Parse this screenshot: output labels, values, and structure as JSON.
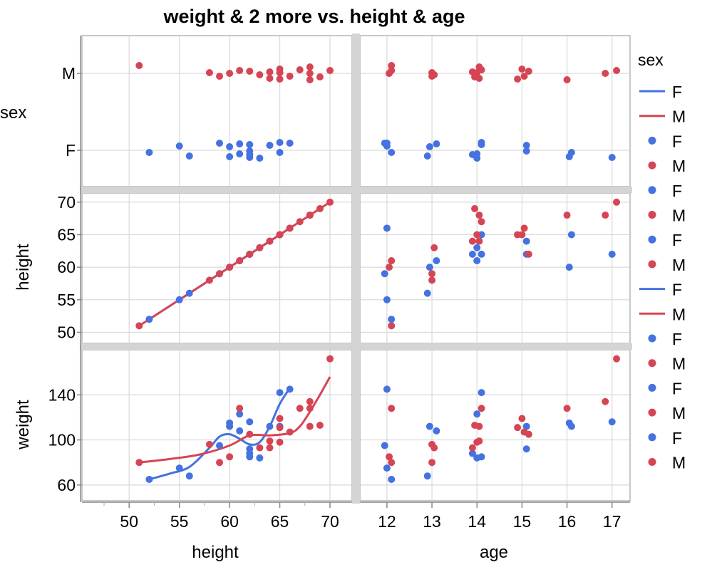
{
  "chart_data": {
    "type": "scatter",
    "title": "weight & 2 more vs. height & age",
    "x_variables": [
      "height",
      "age"
    ],
    "y_variables": [
      "sex",
      "height",
      "weight"
    ],
    "xlabels": [
      "height",
      "age"
    ],
    "ylabels": [
      "sex",
      "height",
      "weight"
    ],
    "axes": {
      "height_x": {
        "range": [
          45.3,
          72.2
        ],
        "ticks": [
          50,
          55,
          60,
          65,
          70
        ]
      },
      "age_x": {
        "range": [
          11.4,
          17.4
        ],
        "ticks": [
          12,
          13,
          14,
          15,
          16,
          17
        ]
      },
      "sex_y": {
        "categories": [
          "F",
          "M"
        ],
        "ticks": [
          "M",
          "F"
        ]
      },
      "height_y": {
        "range": [
          48.3,
          71.4
        ],
        "ticks": [
          50,
          55,
          60,
          65,
          70
        ]
      },
      "weight_y": {
        "range": [
          46,
          180
        ],
        "ticks": [
          60,
          100,
          140
        ]
      }
    },
    "colors": {
      "F": "#4472e0",
      "M": "#d64554"
    },
    "legend": {
      "title": "sex",
      "position": "right",
      "entries": [
        {
          "label": "F",
          "kind": "line",
          "color": "#4472e0"
        },
        {
          "label": "M",
          "kind": "line",
          "color": "#d64554"
        },
        {
          "label": "F",
          "kind": "dot",
          "color": "#4472e0"
        },
        {
          "label": "M",
          "kind": "dot",
          "color": "#d64554"
        },
        {
          "label": "F",
          "kind": "dot",
          "color": "#4472e0"
        },
        {
          "label": "M",
          "kind": "dot",
          "color": "#d64554"
        },
        {
          "label": "F",
          "kind": "dot",
          "color": "#4472e0"
        },
        {
          "label": "M",
          "kind": "dot",
          "color": "#d64554"
        },
        {
          "label": "F",
          "kind": "line",
          "color": "#4472e0"
        },
        {
          "label": "M",
          "kind": "line",
          "color": "#d64554"
        },
        {
          "label": "F",
          "kind": "dot",
          "color": "#4472e0"
        },
        {
          "label": "M",
          "kind": "dot",
          "color": "#d64554"
        },
        {
          "label": "F",
          "kind": "dot",
          "color": "#4472e0"
        },
        {
          "label": "M",
          "kind": "dot",
          "color": "#d64554"
        },
        {
          "label": "F",
          "kind": "dot",
          "color": "#4472e0"
        },
        {
          "label": "M",
          "kind": "dot",
          "color": "#d64554"
        }
      ]
    },
    "grid": true,
    "data": [
      {
        "sex": "M",
        "height": 51,
        "age": 12.1,
        "weight": 80
      },
      {
        "sex": "F",
        "height": 52,
        "age": 12.1,
        "weight": 65
      },
      {
        "sex": "F",
        "height": 55,
        "age": 12.0,
        "weight": 75
      },
      {
        "sex": "F",
        "height": 56,
        "age": 12.9,
        "weight": 68
      },
      {
        "sex": "M",
        "height": 58,
        "age": 13.0,
        "weight": 96
      },
      {
        "sex": "F",
        "height": 59,
        "age": 11.95,
        "weight": 95
      },
      {
        "sex": "M",
        "height": 59,
        "age": 13.0,
        "weight": 80
      },
      {
        "sex": "F",
        "height": 60,
        "age": 12.95,
        "weight": 112
      },
      {
        "sex": "F",
        "height": 60,
        "age": 16.05,
        "weight": 115
      },
      {
        "sex": "M",
        "height": 60,
        "age": 12.05,
        "weight": 85
      },
      {
        "sex": "F",
        "height": 61,
        "age": 13.1,
        "weight": 108
      },
      {
        "sex": "F",
        "height": 61,
        "age": 14.0,
        "weight": 123
      },
      {
        "sex": "M",
        "height": 61,
        "age": 12.1,
        "weight": 128
      },
      {
        "sex": "F",
        "height": 62,
        "age": 17.0,
        "weight": 116
      },
      {
        "sex": "F",
        "height": 62,
        "age": 15.1,
        "weight": 92
      },
      {
        "sex": "F",
        "height": 62,
        "age": 14.1,
        "weight": 85
      },
      {
        "sex": "F",
        "height": 62,
        "age": 13.9,
        "weight": 88
      },
      {
        "sex": "M",
        "height": 62,
        "age": 15.15,
        "weight": 105
      },
      {
        "sex": "F",
        "height": 63,
        "age": 14.0,
        "weight": 84
      },
      {
        "sex": "M",
        "height": 63,
        "age": 13.05,
        "weight": 93
      },
      {
        "sex": "F",
        "height": 64,
        "age": 15.1,
        "weight": 112
      },
      {
        "sex": "M",
        "height": 64,
        "age": 14.05,
        "weight": 99
      },
      {
        "sex": "M",
        "height": 64,
        "age": 13.9,
        "weight": 93
      },
      {
        "sex": "F",
        "height": 65,
        "age": 14.1,
        "weight": 142
      },
      {
        "sex": "F",
        "height": 65,
        "age": 16.1,
        "weight": 112
      },
      {
        "sex": "M",
        "height": 65,
        "age": 15.0,
        "weight": 119
      },
      {
        "sex": "M",
        "height": 65,
        "age": 14.9,
        "weight": 111
      },
      {
        "sex": "M",
        "height": 65,
        "age": 14.0,
        "weight": 98
      },
      {
        "sex": "F",
        "height": 66,
        "age": 12.0,
        "weight": 145
      },
      {
        "sex": "M",
        "height": 66,
        "age": 15.05,
        "weight": 107
      },
      {
        "sex": "M",
        "height": 67,
        "age": 14.1,
        "weight": 128
      },
      {
        "sex": "M",
        "height": 68,
        "age": 16.0,
        "weight": 128
      },
      {
        "sex": "M",
        "height": 68,
        "age": 16.85,
        "weight": 134
      },
      {
        "sex": "M",
        "height": 68,
        "age": 14.05,
        "weight": 112
      },
      {
        "sex": "M",
        "height": 69,
        "age": 13.95,
        "weight": 113
      },
      {
        "sex": "M",
        "height": 70,
        "age": 17.1,
        "weight": 172
      }
    ],
    "smoothers": {
      "weight_vs_height": {
        "F": {
          "x": [
            52,
            54,
            56,
            58,
            59,
            60,
            61,
            62,
            63,
            64,
            65,
            66
          ],
          "y": [
            65,
            70,
            76,
            93,
            103,
            105,
            101,
            96,
            98,
            112,
            132,
            146
          ]
        },
        "M": {
          "x": [
            51,
            54,
            57,
            60,
            62,
            64,
            66,
            67,
            68,
            69,
            70
          ],
          "y": [
            80,
            83,
            87,
            95,
            104,
            104,
            106,
            112,
            125,
            140,
            156
          ]
        }
      },
      "height_vs_height": {
        "F": {
          "x": [
            52,
            66
          ],
          "y": [
            52,
            66
          ]
        },
        "M": {
          "x": [
            51,
            70
          ],
          "y": [
            51,
            70
          ]
        }
      }
    }
  }
}
